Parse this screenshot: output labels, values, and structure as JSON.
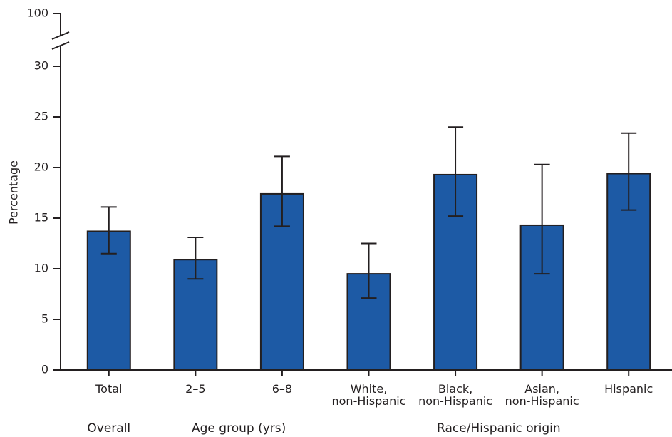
{
  "chart_data": {
    "type": "bar",
    "y_label": "Percentage",
    "categories": [
      "Total",
      "2–5",
      "6–8",
      "White,\nnon-Hispanic",
      "Black,\nnon-Hispanic",
      "Asian,\nnon-Hispanic",
      "Hispanic"
    ],
    "values": [
      13.7,
      10.9,
      17.4,
      9.5,
      19.3,
      14.3,
      19.4
    ],
    "ci_lower": [
      11.5,
      9.0,
      14.2,
      7.1,
      15.2,
      9.5,
      15.8
    ],
    "ci_upper": [
      16.1,
      13.1,
      21.1,
      12.5,
      24.0,
      20.3,
      23.4
    ],
    "color": "#1d5aa5",
    "groups": [
      {
        "name": "Overall",
        "count": 1
      },
      {
        "name": "Age group (yrs)",
        "count": 2
      },
      {
        "name": "Race/Hispanic origin",
        "count": 4
      }
    ],
    "ylim": [
      0,
      100
    ],
    "axis_break": [
      30,
      100
    ],
    "yticks": [
      0,
      5,
      10,
      15,
      20,
      25,
      30,
      100
    ]
  }
}
